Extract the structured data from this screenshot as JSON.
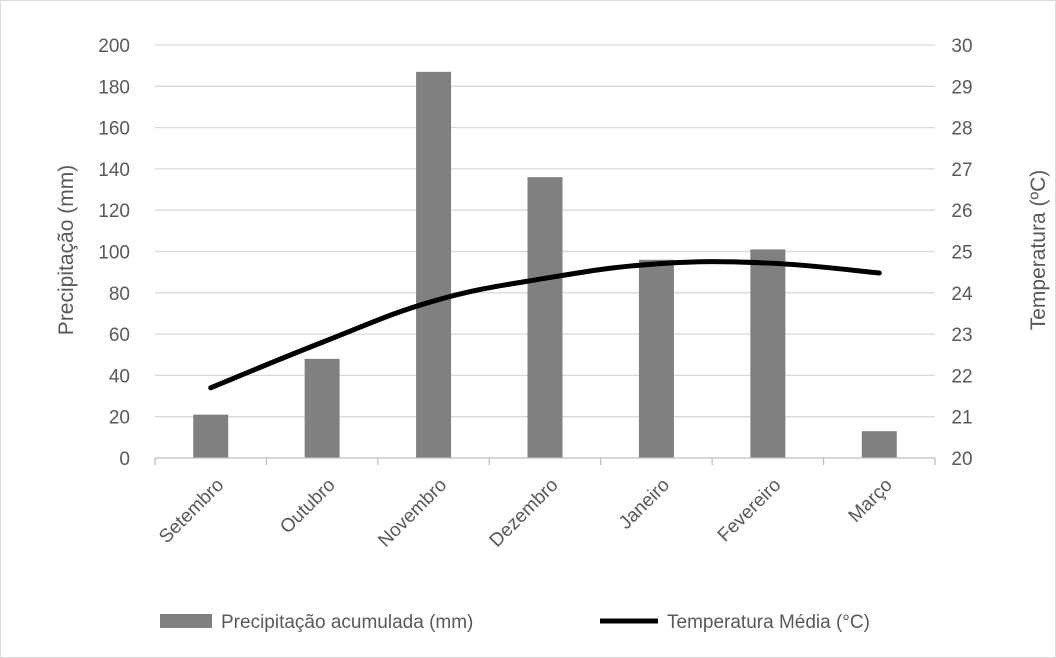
{
  "chart_data": {
    "type": "bar",
    "categories": [
      "Setembro",
      "Outubro",
      "Novembro",
      "Dezembro",
      "Janeiro",
      "Fevereiro",
      "Março"
    ],
    "series": [
      {
        "name": "Precipitação acumulada (mm)",
        "kind": "bar",
        "axis": "left",
        "color": "#808080",
        "values": [
          21,
          48,
          187,
          136,
          96,
          101,
          13
        ]
      },
      {
        "name": "Temperatura Média (°C)",
        "kind": "line",
        "axis": "right",
        "color": "#000000",
        "values": [
          21.7,
          22.8,
          23.8,
          24.35,
          24.7,
          24.72,
          24.48
        ]
      }
    ],
    "ylabel": "Precipitação (mm)",
    "ylabel_right": "Temperatura (ºC)",
    "xlabel": "",
    "ylim": [
      0,
      200
    ],
    "ylim_right": [
      20,
      30
    ],
    "yticks": [
      "0",
      "20",
      "40",
      "60",
      "80",
      "100",
      "120",
      "140",
      "160",
      "180",
      "200"
    ],
    "yticks_right": [
      "20",
      "21",
      "22",
      "23",
      "24",
      "25",
      "26",
      "27",
      "28",
      "29",
      "30"
    ],
    "grid": true,
    "legend_position": "bottom"
  }
}
